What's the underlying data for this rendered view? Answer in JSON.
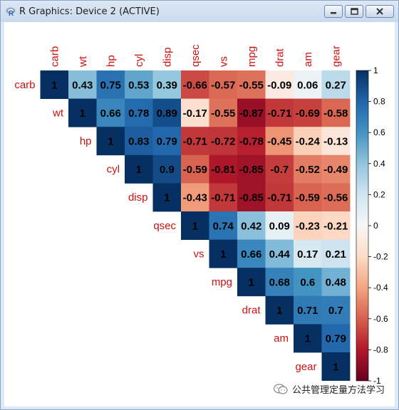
{
  "window": {
    "title": "R Graphics: Device 2 (ACTIVE)",
    "minimize_icon": "minimize-icon",
    "maximize_icon": "maximize-icon",
    "close_icon": "close-icon"
  },
  "colors": {
    "label_red": "#cc1111",
    "scale": {
      "-1": "#67001F",
      "-0.8": "#B2182B",
      "-0.6": "#D6604D",
      "-0.4": "#F4A582",
      "-0.2": "#FDDBC7",
      "0": "#F7F7F7",
      "0.2": "#D1E5F0",
      "0.4": "#92C5DE",
      "0.6": "#4393C3",
      "0.8": "#2166AC",
      "1": "#053061"
    }
  },
  "chart_data": {
    "type": "heatmap",
    "title": "",
    "variables": [
      "carb",
      "wt",
      "hp",
      "cyl",
      "disp",
      "qsec",
      "vs",
      "mpg",
      "drat",
      "am",
      "gear"
    ],
    "matrix_type": "upper",
    "values": [
      [
        1,
        0.43,
        0.75,
        0.53,
        0.39,
        -0.66,
        -0.57,
        -0.55,
        -0.09,
        0.06,
        0.27
      ],
      [
        null,
        1,
        0.66,
        0.78,
        0.89,
        -0.17,
        -0.55,
        -0.87,
        -0.71,
        -0.69,
        -0.58
      ],
      [
        null,
        null,
        1,
        0.83,
        0.79,
        -0.71,
        -0.72,
        -0.78,
        -0.45,
        -0.24,
        -0.13
      ],
      [
        null,
        null,
        null,
        1,
        0.9,
        -0.59,
        -0.81,
        -0.85,
        -0.7,
        -0.52,
        -0.49
      ],
      [
        null,
        null,
        null,
        null,
        1,
        -0.43,
        -0.71,
        -0.85,
        -0.71,
        -0.59,
        -0.56
      ],
      [
        null,
        null,
        null,
        null,
        null,
        1,
        0.74,
        0.42,
        0.09,
        -0.23,
        -0.21
      ],
      [
        null,
        null,
        null,
        null,
        null,
        null,
        1,
        0.66,
        0.44,
        0.17,
        0.21
      ],
      [
        null,
        null,
        null,
        null,
        null,
        null,
        null,
        1,
        0.68,
        0.6,
        0.48
      ],
      [
        null,
        null,
        null,
        null,
        null,
        null,
        null,
        null,
        1,
        0.71,
        0.7
      ],
      [
        null,
        null,
        null,
        null,
        null,
        null,
        null,
        null,
        null,
        1,
        0.79
      ],
      [
        null,
        null,
        null,
        null,
        null,
        null,
        null,
        null,
        null,
        null,
        1
      ]
    ],
    "legend": {
      "position": "right",
      "ticks": [
        "1",
        "0.8",
        "0.6",
        "0.4",
        "0.2",
        "0",
        "-0.2",
        "-0.4",
        "-0.6",
        "-0.8",
        "-1"
      ],
      "range": [
        -1,
        1
      ]
    }
  },
  "watermark": {
    "text": "公共管理定量方法学习",
    "icon": "chat-bubble-icon"
  }
}
